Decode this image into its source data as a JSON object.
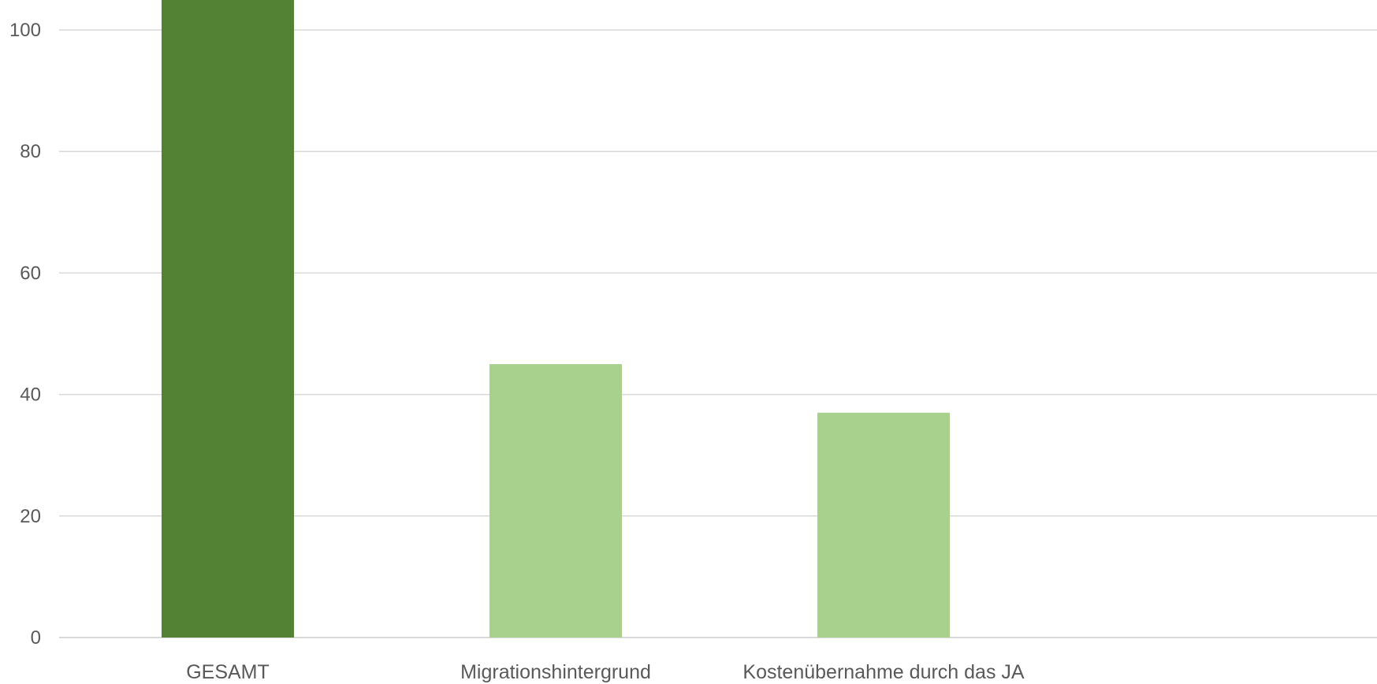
{
  "chart_data": {
    "type": "bar",
    "categories": [
      "GESAMT",
      "Migrationshintergrund",
      "Kostenübernahme durch das JA",
      ""
    ],
    "values": [
      105,
      45,
      37,
      null
    ],
    "colors": [
      "#548235",
      "#a9d18e",
      "#a9d18e",
      "#a9d18e"
    ],
    "ylim": [
      0,
      100
    ],
    "yticks": [
      "0",
      "20",
      "40",
      "60",
      "80",
      "100"
    ],
    "gridline_color": "#d9d9d9",
    "grid": true,
    "title": "",
    "xlabel": "",
    "ylabel": ""
  }
}
